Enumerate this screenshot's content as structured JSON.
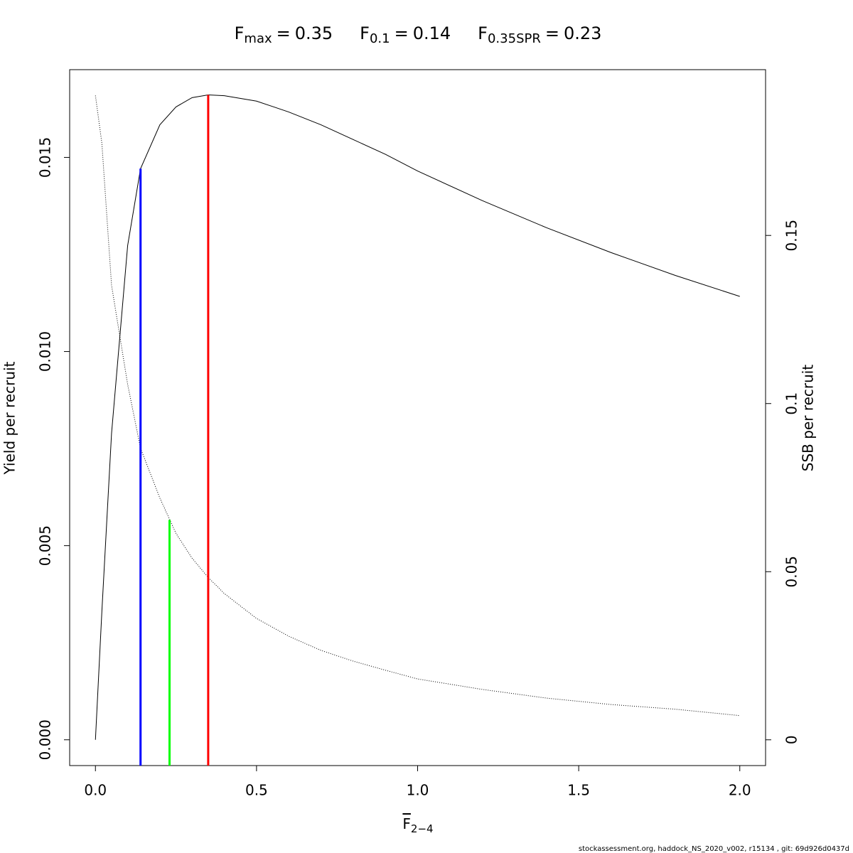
{
  "chart_data": {
    "type": "line",
    "reference_points": [
      {
        "name": "F",
        "sub": "max",
        "relation": "=",
        "value": 0.35,
        "height": 0.01661,
        "axis": "y",
        "color": "#ff0000"
      },
      {
        "name": "F",
        "sub": "0.1",
        "relation": "=",
        "value": 0.14,
        "height": 0.01471,
        "axis": "y",
        "color": "#0000ff"
      },
      {
        "name": "F",
        "sub": "0.35SPR",
        "relation": "=",
        "value": 0.23,
        "height": 0.0654,
        "axis": "y2",
        "color": "#00ff00"
      }
    ],
    "x_label": {
      "text": "F",
      "sub": "2−4"
    },
    "y_label": "Yield per recruit",
    "y2_label": "SSB per recruit",
    "x": [
      0,
      0.02,
      0.05,
      0.1,
      0.14,
      0.2,
      0.25,
      0.3,
      0.35,
      0.4,
      0.5,
      0.6,
      0.7,
      0.8,
      0.9,
      1.0,
      1.2,
      1.4,
      1.6,
      1.8,
      2.0
    ],
    "series": [
      {
        "name": "Yield per recruit",
        "color": "#000000",
        "dash": "solid",
        "axis": "y",
        "values": [
          0,
          0.00331,
          0.00789,
          0.01273,
          0.01471,
          0.01584,
          0.0163,
          0.01654,
          0.01661,
          0.01659,
          0.01645,
          0.01617,
          0.01584,
          0.01546,
          0.01508,
          0.01465,
          0.01389,
          0.01319,
          0.01255,
          0.01196,
          0.01142
        ]
      },
      {
        "name": "SSB per recruit",
        "color": "#000000",
        "dash": "dotted",
        "axis": "y2",
        "values": [
          0.1916,
          0.1774,
          0.1352,
          0.1057,
          0.0867,
          0.0719,
          0.0614,
          0.054,
          0.0483,
          0.0435,
          0.0361,
          0.0308,
          0.0266,
          0.0234,
          0.0207,
          0.0181,
          0.015,
          0.0124,
          0.0105,
          0.0091,
          0.0072
        ]
      }
    ],
    "xlim": [
      -0.08,
      2.08
    ],
    "xticks": [
      {
        "value": 0,
        "label": "0.0"
      },
      {
        "value": 0.5,
        "label": "0.5"
      },
      {
        "value": 1,
        "label": "1.0"
      },
      {
        "value": 1.5,
        "label": "1.5"
      },
      {
        "value": 2,
        "label": "2.0"
      }
    ],
    "ylim": [
      -0.000664,
      0.01726
    ],
    "yticks": [
      {
        "value": 0,
        "label": "0.000"
      },
      {
        "value": 0.005,
        "label": "0.005"
      },
      {
        "value": 0.01,
        "label": "0.010"
      },
      {
        "value": 0.015,
        "label": "0.015"
      }
    ],
    "y2lim": [
      -0.00766,
      0.1993
    ],
    "y2ticks": [
      0,
      0.05,
      0.1,
      0.15
    ],
    "footer": "stockassessment.org, haddock_NS_2020_v002, r15134 , git: 69d926d0437d"
  }
}
